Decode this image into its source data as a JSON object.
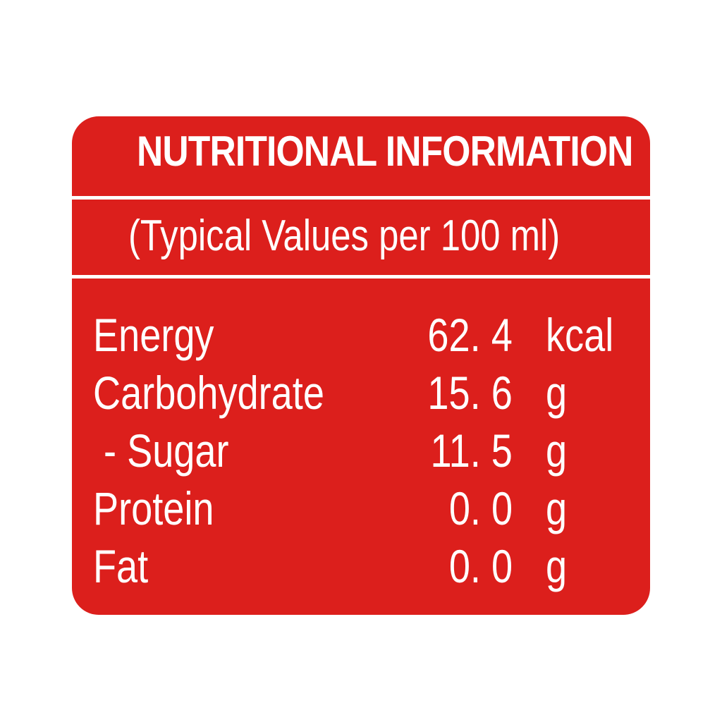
{
  "panel": {
    "title": "NUTRITIONAL INFORMATION",
    "subtitle": "(Typical Values per 100 ml)",
    "background_color": "#dc1f1c",
    "text_color": "#ffffff"
  },
  "rows": [
    {
      "nutrient": "Energy",
      "value": "62. 4",
      "unit": "kcal"
    },
    {
      "nutrient": "Carbohydrate",
      "value": "15. 6",
      "unit": "g"
    },
    {
      "nutrient": " - Sugar",
      "value": "11. 5",
      "unit": "g"
    },
    {
      "nutrient": "Protein",
      "value": "0. 0",
      "unit": "g"
    },
    {
      "nutrient": "Fat",
      "value": "0. 0",
      "unit": "g"
    }
  ]
}
